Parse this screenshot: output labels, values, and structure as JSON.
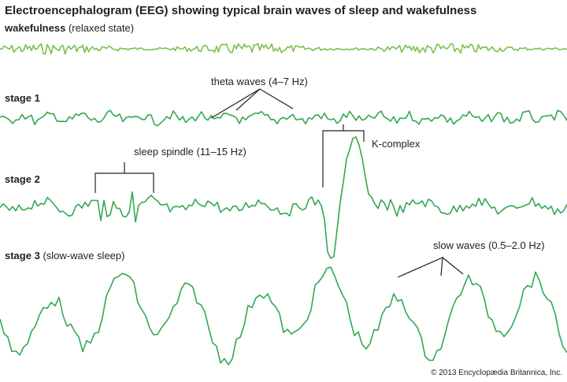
{
  "title": "Electroencephalogram (EEG) showing typical brain waves of sleep and wakefulness",
  "rows": [
    {
      "label": "wakefulness",
      "note": "(relaxed state)"
    },
    {
      "label": "stage 1"
    },
    {
      "label": "stage 2"
    },
    {
      "label": "stage 3",
      "note": "(slow-wave sleep)"
    }
  ],
  "annotations": {
    "theta": "theta waves (4–7 Hz)",
    "spindle": "sleep spindle (11–15 Hz)",
    "kcomplex": "K-complex",
    "slow": "slow waves (0.5–2.0 Hz)"
  },
  "credit": "© 2013 Encyclopædia Britannica, Inc."
}
